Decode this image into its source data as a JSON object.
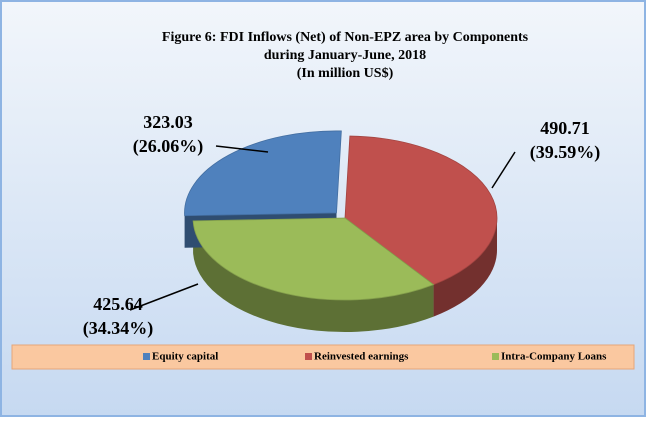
{
  "chart_data": {
    "type": "pie",
    "title": [
      "Figure 6: FDI Inflows (Net) of  Non-EPZ  area by Components",
      "during January-June, 2018"
    ],
    "subtitle": "(In million US$)",
    "categories": [
      "Equity capital",
      "Reinvested earnings",
      "Intra-Company Loans"
    ],
    "values": [
      323.03,
      490.71,
      425.64
    ],
    "percentages": [
      26.06,
      39.59,
      34.34
    ],
    "percentage_labels": [
      "(26.06%)",
      "(39.59%)",
      "(34.34%)"
    ],
    "colors": [
      "#4f81bd",
      "#c0504d",
      "#9bbb59"
    ],
    "legend": "bottom"
  }
}
